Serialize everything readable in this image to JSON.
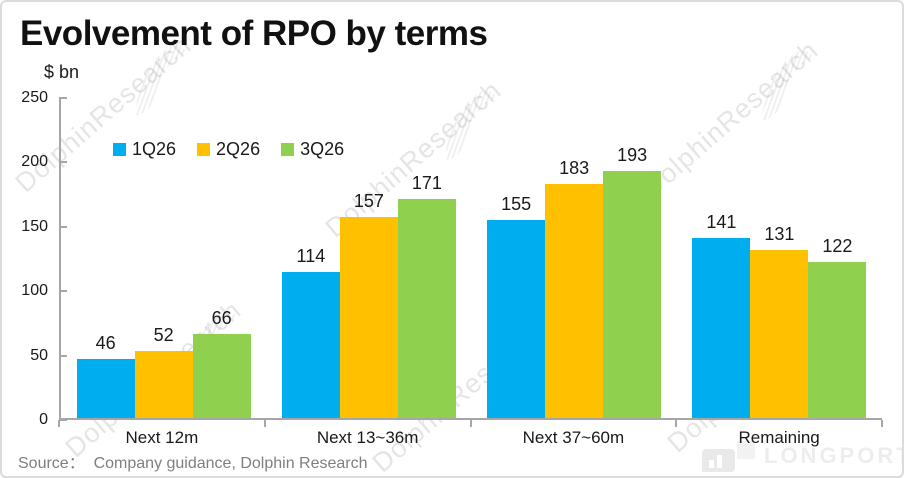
{
  "header": {
    "title": "Evolvement of RPO by terms",
    "unit_label": "$ bn"
  },
  "chart_data": {
    "type": "bar",
    "title": "Evolvement of RPO by terms",
    "ylabel": "$ bn",
    "categories": [
      "Next 12m",
      "Next 13~36m",
      "Next 37~60m",
      "Remaining"
    ],
    "series": [
      {
        "name": "1Q26",
        "color": "#00ADEE",
        "values": [
          46,
          114,
          155,
          141
        ]
      },
      {
        "name": "2Q26",
        "color": "#FFC000",
        "values": [
          52,
          157,
          183,
          131
        ]
      },
      {
        "name": "3Q26",
        "color": "#8FD14F",
        "values": [
          66,
          171,
          193,
          122
        ]
      }
    ],
    "ylim": [
      0,
      250
    ],
    "yticks": [
      0,
      50,
      100,
      150,
      200,
      250
    ],
    "grid": false,
    "legend_position": "top-left",
    "bar_labels": true
  },
  "footer": {
    "source": "Source：  Company guidance, Dolphin Research"
  },
  "watermarks": {
    "dolphin_text": "DolphinResearch",
    "longport_text": "LONGPORT"
  },
  "colors": {
    "axis": "#A6A6A6",
    "text": "#1A1A1A",
    "source_text": "#7F7F7F",
    "watermark": "#E2E2E2"
  }
}
